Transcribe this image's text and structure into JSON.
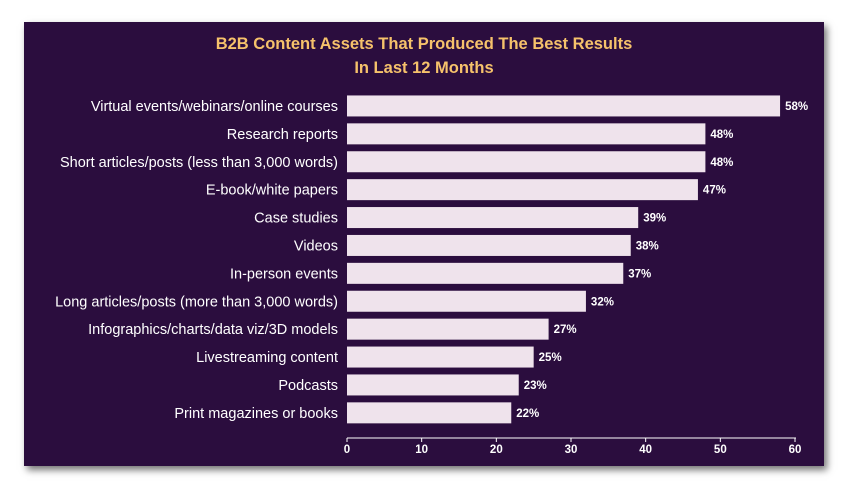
{
  "colors": {
    "background": "#2b0d3e",
    "title": "#f6c26b",
    "bar": "#efe3ec",
    "text": "#ffffff",
    "axis": "#ffffff"
  },
  "chart_data": {
    "type": "bar",
    "orientation": "horizontal",
    "title": "B2B Content Assets That Produced The Best Results",
    "subtitle": "In Last 12 Months",
    "categories": [
      "Virtual events/webinars/online courses",
      "Research reports",
      "Short articles/posts (less than 3,000 words)",
      "E-book/white papers",
      "Case studies",
      "Videos",
      "In-person events",
      "Long articles/posts (more than 3,000 words)",
      "Infographics/charts/data viz/3D models",
      "Livestreaming content",
      "Podcasts",
      "Print magazines or books"
    ],
    "values": [
      58,
      48,
      48,
      47,
      39,
      38,
      37,
      32,
      27,
      25,
      23,
      22
    ],
    "value_labels": [
      "58%",
      "48%",
      "48%",
      "47%",
      "39%",
      "38%",
      "37%",
      "32%",
      "27%",
      "25%",
      "23%",
      "22%"
    ],
    "xlim": [
      0,
      60
    ],
    "xticks": [
      0,
      10,
      20,
      30,
      40,
      50,
      60
    ],
    "xtick_labels": [
      "0",
      "10",
      "20",
      "30",
      "40",
      "50",
      "60"
    ],
    "xlabel": "",
    "ylabel": "",
    "grid": false,
    "legend": "none"
  }
}
